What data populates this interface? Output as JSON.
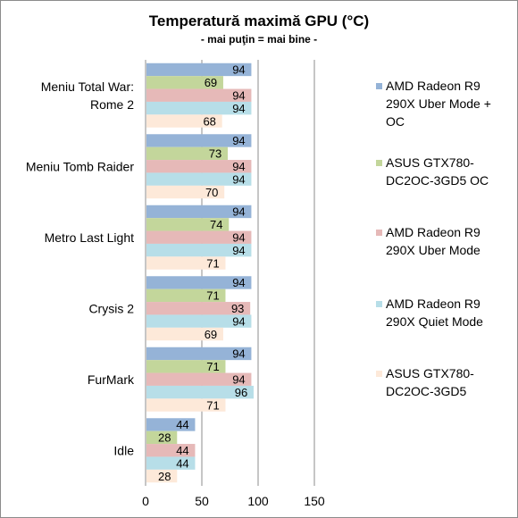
{
  "chart_data": {
    "type": "bar",
    "orientation": "horizontal",
    "title": "Temperatură maximă GPU (°C)",
    "subtitle": "- mai puţin = mai bine -",
    "categories": [
      "Meniu Total War:\nRome 2",
      "Meniu Tomb Raider",
      "Metro Last Light",
      "Crysis 2",
      "FurMark",
      "Idle"
    ],
    "series": [
      {
        "name": "AMD Radeon R9 290X Uber Mode + OC",
        "color": "#95b3d7",
        "values": [
          94,
          94,
          94,
          94,
          94,
          44
        ]
      },
      {
        "name": "ASUS GTX780-DC2OC-3GD5 OC",
        "color": "#c3d69b",
        "values": [
          69,
          73,
          74,
          71,
          71,
          28
        ]
      },
      {
        "name": "AMD Radeon R9 290X Uber Mode",
        "color": "#e6b9b8",
        "values": [
          94,
          94,
          94,
          93,
          94,
          44
        ]
      },
      {
        "name": "AMD Radeon R9 290X Quiet Mode",
        "color": "#b7dee8",
        "values": [
          94,
          94,
          94,
          94,
          96,
          44
        ]
      },
      {
        "name": "ASUS GTX780-DC2OC-3GD5",
        "color": "#fde9d9",
        "values": [
          68,
          70,
          71,
          69,
          71,
          28
        ]
      }
    ],
    "legend_lines": [
      [
        "AMD Radeon R9",
        "290X Uber Mode +",
        "OC"
      ],
      [
        "ASUS GTX780-",
        "DC2OC-3GD5 OC"
      ],
      [
        "AMD Radeon R9",
        "290X Uber Mode"
      ],
      [
        "AMD Radeon R9",
        "290X Quiet Mode"
      ],
      [
        "ASUS GTX780-",
        "DC2OC-3GD5"
      ]
    ],
    "xlim": [
      0,
      150
    ],
    "xticks": [
      0,
      50,
      100,
      150
    ],
    "grid": true,
    "legend_position": "right"
  }
}
